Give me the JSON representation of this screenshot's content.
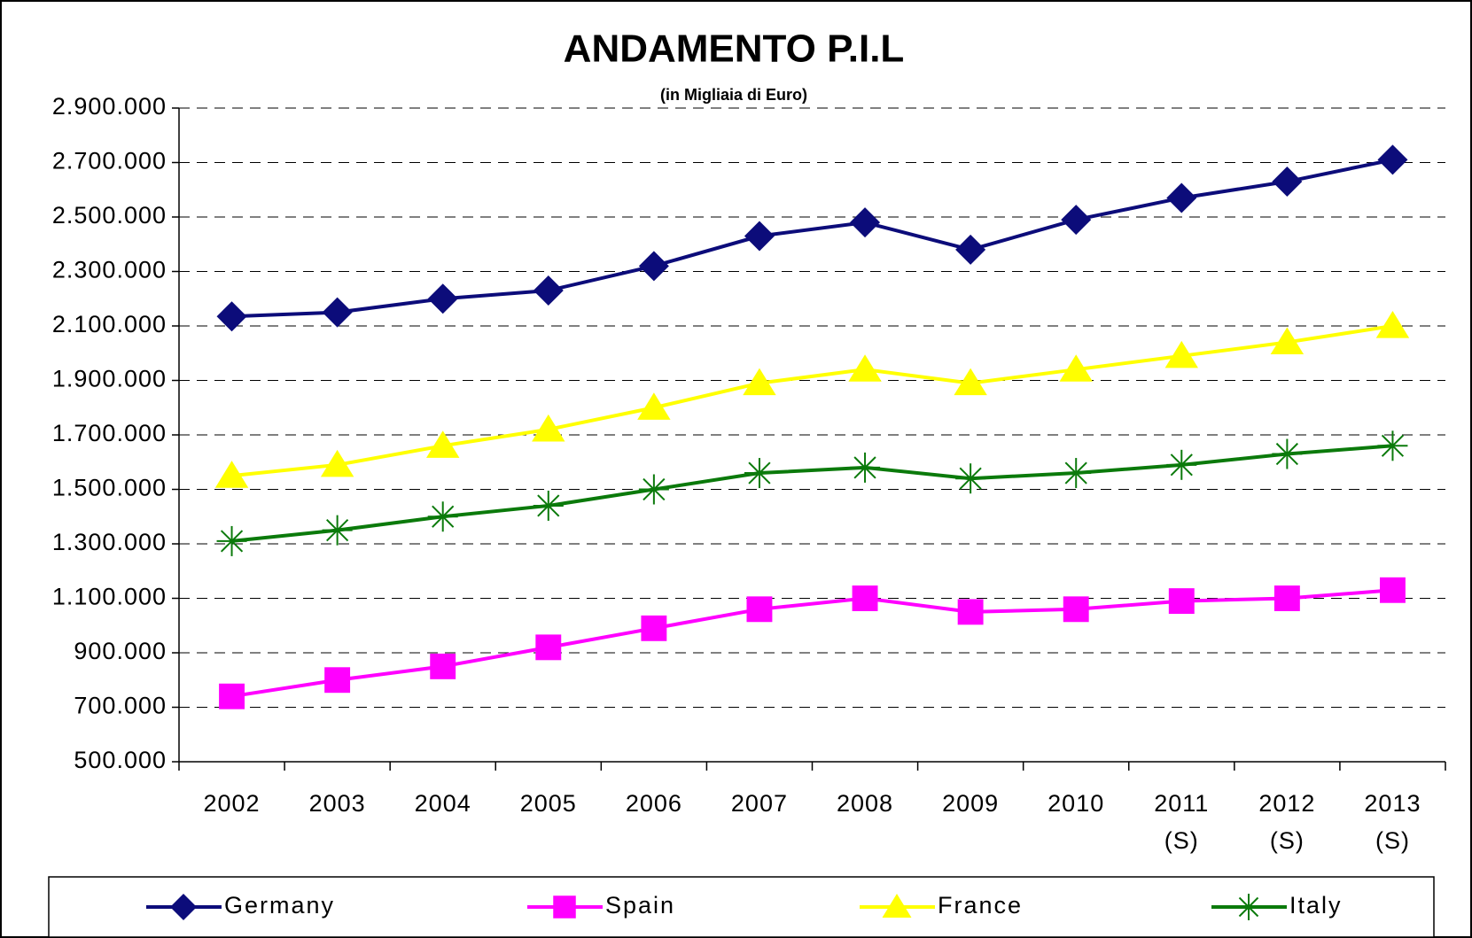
{
  "chart_data": {
    "type": "line",
    "title": "ANDAMENTO P.I.L",
    "subtitle": "(in Migliaia di Euro)",
    "categories": [
      "2002",
      "2003",
      "2004",
      "2005",
      "2006",
      "2007",
      "2008",
      "2009",
      "2010",
      "2011 (S)",
      "2012 (S)",
      "2013 (S)"
    ],
    "series": [
      {
        "name": "Germany",
        "color": "#0c0c7a",
        "marker": "diamond",
        "values": [
          2135000,
          2150000,
          2200000,
          2230000,
          2320000,
          2430000,
          2480000,
          2380000,
          2490000,
          2570000,
          2630000,
          2710000
        ]
      },
      {
        "name": "Spain",
        "color": "#ff00ff",
        "marker": "square",
        "values": [
          740000,
          800000,
          850000,
          920000,
          990000,
          1060000,
          1100000,
          1050000,
          1060000,
          1090000,
          1100000,
          1130000
        ]
      },
      {
        "name": "France",
        "color": "#ffff00",
        "marker": "triangle",
        "values": [
          1550000,
          1590000,
          1660000,
          1720000,
          1800000,
          1890000,
          1940000,
          1890000,
          1940000,
          1990000,
          2040000,
          2100000
        ]
      },
      {
        "name": "Italy",
        "color": "#0b7a0b",
        "marker": "star",
        "values": [
          1310000,
          1350000,
          1400000,
          1440000,
          1500000,
          1560000,
          1580000,
          1540000,
          1560000,
          1590000,
          1630000,
          1660000
        ]
      }
    ],
    "ylim": [
      500000,
      2900000
    ],
    "yticks": [
      {
        "value": 500000,
        "label": "500.000"
      },
      {
        "value": 700000,
        "label": "700.000"
      },
      {
        "value": 900000,
        "label": "900.000"
      },
      {
        "value": 1100000,
        "label": "1.100.000"
      },
      {
        "value": 1300000,
        "label": "1.300.000"
      },
      {
        "value": 1500000,
        "label": "1.500.000"
      },
      {
        "value": 1700000,
        "label": "1.700.000"
      },
      {
        "value": 1900000,
        "label": "1.900.000"
      },
      {
        "value": 2100000,
        "label": "2.100.000"
      },
      {
        "value": 2300000,
        "label": "2.300.000"
      },
      {
        "value": 2500000,
        "label": "2.500.000"
      },
      {
        "value": 2700000,
        "label": "2.700.000"
      },
      {
        "value": 2900000,
        "label": "2.900.000"
      }
    ],
    "grid": true,
    "legend": "bottom"
  }
}
